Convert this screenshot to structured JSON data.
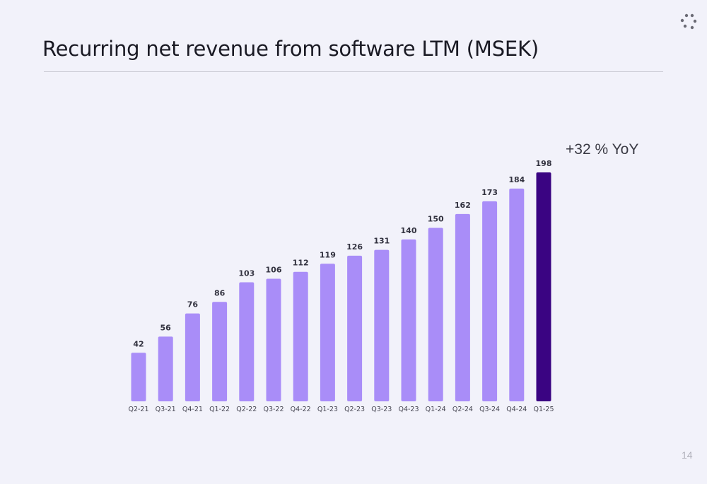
{
  "slide": {
    "title": "Recurring net revenue from software LTM (MSEK)",
    "page_number": "14",
    "annotation": "+32 % YoY"
  },
  "colors": {
    "bar": "#a98df8",
    "highlight_bar": "#3a0482",
    "background": "#f2f2fa"
  },
  "chart_data": {
    "type": "bar",
    "title": "Recurring net revenue from software LTM (MSEK)",
    "categories": [
      "Q2-21",
      "Q3-21",
      "Q4-21",
      "Q1-22",
      "Q2-22",
      "Q3-22",
      "Q4-22",
      "Q1-23",
      "Q2-23",
      "Q3-23",
      "Q4-23",
      "Q1-24",
      "Q2-24",
      "Q3-24",
      "Q4-24",
      "Q1-25"
    ],
    "values": [
      42,
      56,
      76,
      86,
      103,
      106,
      112,
      119,
      126,
      131,
      140,
      150,
      162,
      173,
      184,
      198
    ],
    "highlight_category": "Q1-25",
    "data_labels": true,
    "ylim": [
      0,
      198
    ],
    "grid": false,
    "legend": "none"
  }
}
